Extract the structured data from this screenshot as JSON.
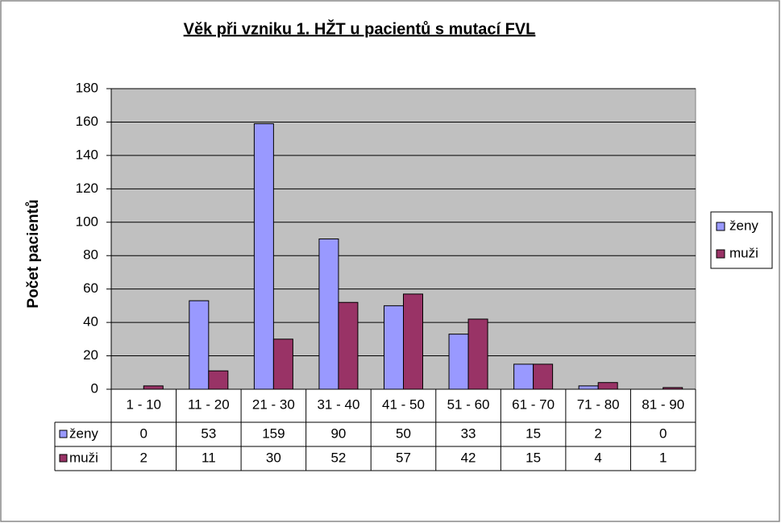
{
  "chart_data": {
    "type": "bar",
    "title": "Věk při vzniku 1. HŽT u pacientů s mutací FVL",
    "y_label": "Počet pacientů",
    "categories": [
      "1 - 10",
      "11 - 20",
      "21 - 30",
      "31 - 40",
      "41 - 50",
      "51 - 60",
      "61 - 70",
      "71 - 80",
      "81 - 90"
    ],
    "series": [
      {
        "name": "ženy",
        "color": "#9999ff",
        "values": [
          0,
          53,
          159,
          90,
          50,
          33,
          15,
          2,
          0
        ]
      },
      {
        "name": "muži",
        "color": "#993366",
        "values": [
          2,
          11,
          30,
          52,
          57,
          42,
          15,
          4,
          1
        ]
      }
    ],
    "ylim": [
      0,
      180
    ],
    "yticks": [
      0,
      20,
      40,
      60,
      80,
      100,
      120,
      140,
      160,
      180
    ],
    "grid": true,
    "legend": "right",
    "plot_background": "#c0c0c0"
  }
}
